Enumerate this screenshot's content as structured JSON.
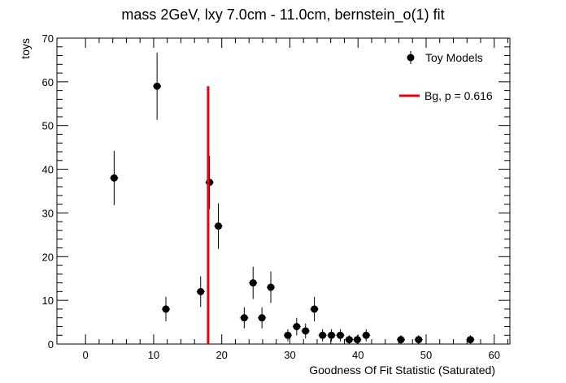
{
  "chart_data": {
    "type": "scatter",
    "title": "mass 2GeV, lxy 7.0cm - 11.0cm, bernstein_o(1) fit",
    "xlabel": "Goodness Of Fit Statistic (Saturated)",
    "ylabel": "toys",
    "xlim": [
      -4.2,
      62.3
    ],
    "ylim": [
      0,
      70
    ],
    "x_ticks": [
      0,
      10,
      20,
      30,
      40,
      50,
      60
    ],
    "y_ticks": [
      0,
      10,
      20,
      30,
      40,
      50,
      60,
      70
    ],
    "grid": false,
    "legend_position": "top-right",
    "series": [
      {
        "name": "Toy Models",
        "kind": "points-with-errors",
        "color": "#000000",
        "x": [
          4.2,
          10.5,
          11.8,
          16.9,
          18.2,
          19.5,
          23.3,
          24.6,
          25.9,
          27.2,
          29.7,
          31.0,
          32.3,
          33.6,
          34.8,
          36.1,
          37.4,
          38.7,
          39.9,
          41.2,
          46.3,
          48.9,
          56.5
        ],
        "y": [
          38,
          59,
          8,
          12,
          37,
          27,
          6,
          14,
          6,
          13,
          2,
          4,
          3,
          8,
          2,
          2,
          2,
          1,
          1,
          2,
          1,
          1,
          1
        ],
        "yerr": [
          6.2,
          7.7,
          2.8,
          3.5,
          6.1,
          5.2,
          2.4,
          3.7,
          2.4,
          3.6,
          1.4,
          2.0,
          1.7,
          2.8,
          1.4,
          1.4,
          1.4,
          1.0,
          1.0,
          1.4,
          1.0,
          1.0,
          1.0
        ],
        "xerr": 0.6
      },
      {
        "name": "Bg, p = 0.616",
        "kind": "vertical-line",
        "color": "#e8000b",
        "x": 18.0,
        "y_range": [
          0,
          59
        ]
      }
    ]
  }
}
